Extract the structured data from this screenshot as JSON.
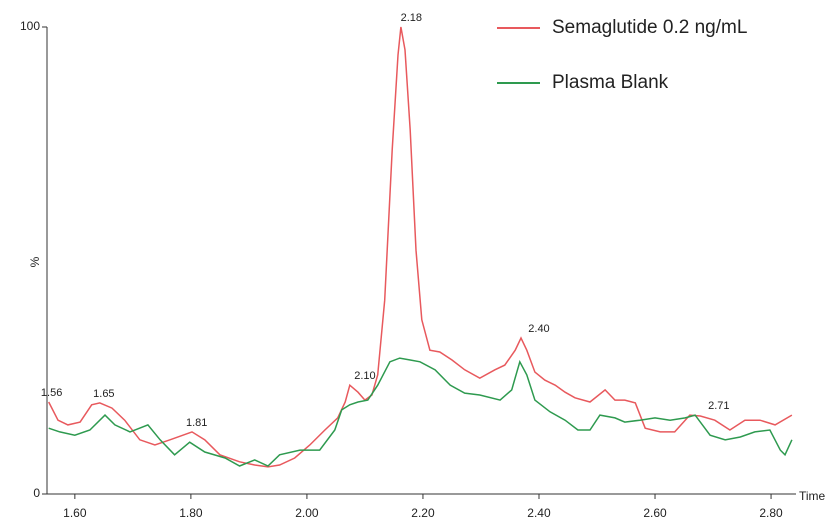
{
  "chart_data": {
    "type": "line",
    "y_label": "%",
    "x_label": "Time",
    "xlim": [
      1.552,
      2.843
    ],
    "ylim": [
      0,
      100
    ],
    "xticks": [
      {
        "value": 1.6,
        "label": "1.60"
      },
      {
        "value": 1.8,
        "label": "1.80"
      },
      {
        "value": 2.0,
        "label": "2.00"
      },
      {
        "value": 2.2,
        "label": "2.20"
      },
      {
        "value": 2.4,
        "label": "2.40"
      },
      {
        "value": 2.6,
        "label": "2.60"
      },
      {
        "value": 2.8,
        "label": "2.80"
      }
    ],
    "yticks": [
      0,
      100
    ],
    "series": [
      {
        "name": "Semaglutide 0.2 ng/mL",
        "color": "#e8595d",
        "x": [
          1.555,
          1.571,
          1.588,
          1.609,
          1.629,
          1.643,
          1.664,
          1.686,
          1.712,
          1.738,
          1.764,
          1.802,
          1.824,
          1.85,
          1.884,
          1.91,
          1.933,
          1.953,
          1.979,
          2.005,
          2.031,
          2.053,
          2.066,
          2.074,
          2.088,
          2.1,
          2.112,
          2.122,
          2.134,
          2.147,
          2.157,
          2.162,
          2.169,
          2.178,
          2.188,
          2.198,
          2.212,
          2.229,
          2.25,
          2.272,
          2.298,
          2.324,
          2.341,
          2.359,
          2.369,
          2.379,
          2.393,
          2.41,
          2.428,
          2.445,
          2.462,
          2.488,
          2.514,
          2.531,
          2.548,
          2.566,
          2.583,
          2.609,
          2.634,
          2.66,
          2.678,
          2.703,
          2.729,
          2.755,
          2.781,
          2.807,
          2.836
        ],
        "values": [
          19.7,
          15.8,
          14.8,
          15.4,
          19.1,
          19.5,
          18.4,
          15.8,
          11.6,
          10.5,
          11.6,
          13.3,
          11.6,
          8.4,
          6.9,
          6.2,
          5.8,
          6.2,
          7.7,
          10.5,
          13.7,
          16.3,
          19.7,
          23.3,
          21.8,
          20.1,
          21.2,
          25.5,
          41.5,
          73.7,
          94.0,
          100,
          95.1,
          77.9,
          52.2,
          37.3,
          30.8,
          30.4,
          28.7,
          26.6,
          24.8,
          26.6,
          27.6,
          30.8,
          33.4,
          30.8,
          26.1,
          24.4,
          23.3,
          21.8,
          20.6,
          19.7,
          22.3,
          20.1,
          20.1,
          19.5,
          14.1,
          13.3,
          13.3,
          16.9,
          16.7,
          15.8,
          13.7,
          15.8,
          15.8,
          14.8,
          16.9
        ]
      },
      {
        "name": "Plasma Blank",
        "color": "#2e9a4f",
        "x": [
          1.555,
          1.574,
          1.6,
          1.626,
          1.652,
          1.669,
          1.695,
          1.726,
          1.747,
          1.772,
          1.798,
          1.824,
          1.859,
          1.884,
          1.91,
          1.933,
          1.953,
          1.988,
          2.022,
          2.048,
          2.06,
          2.074,
          2.088,
          2.105,
          2.122,
          2.143,
          2.16,
          2.178,
          2.195,
          2.221,
          2.247,
          2.272,
          2.298,
          2.333,
          2.353,
          2.367,
          2.379,
          2.393,
          2.419,
          2.445,
          2.467,
          2.488,
          2.505,
          2.531,
          2.548,
          2.574,
          2.6,
          2.626,
          2.652,
          2.669,
          2.695,
          2.721,
          2.747,
          2.772,
          2.798,
          2.816,
          2.824,
          2.836
        ],
        "values": [
          14.1,
          13.3,
          12.6,
          13.7,
          16.9,
          14.8,
          13.3,
          14.8,
          11.6,
          8.4,
          11.1,
          9.0,
          7.7,
          6.0,
          7.3,
          6.0,
          8.4,
          9.4,
          9.4,
          13.7,
          18.0,
          19.1,
          19.7,
          20.1,
          23.3,
          28.3,
          29.1,
          28.7,
          28.3,
          26.6,
          23.3,
          21.6,
          21.2,
          20.1,
          22.3,
          28.3,
          25.5,
          20.1,
          17.6,
          15.8,
          13.7,
          13.7,
          16.9,
          16.3,
          15.4,
          15.8,
          16.3,
          15.8,
          16.3,
          16.9,
          12.6,
          11.6,
          12.2,
          13.3,
          13.7,
          9.4,
          8.4,
          11.6
        ]
      }
    ],
    "annotations": [
      {
        "x": 1.56,
        "label": "1.56",
        "y": 19.7
      },
      {
        "x": 1.65,
        "label": "1.65",
        "y": 19.5
      },
      {
        "x": 1.81,
        "label": "1.81",
        "y": 13.3
      },
      {
        "x": 2.1,
        "label": "2.10",
        "y": 23.3
      },
      {
        "x": 2.18,
        "label": "2.18",
        "y": 100
      },
      {
        "x": 2.4,
        "label": "2.40",
        "y": 33.4
      },
      {
        "x": 2.71,
        "label": "2.71",
        "y": 16.9
      }
    ],
    "legend": "top-right"
  }
}
